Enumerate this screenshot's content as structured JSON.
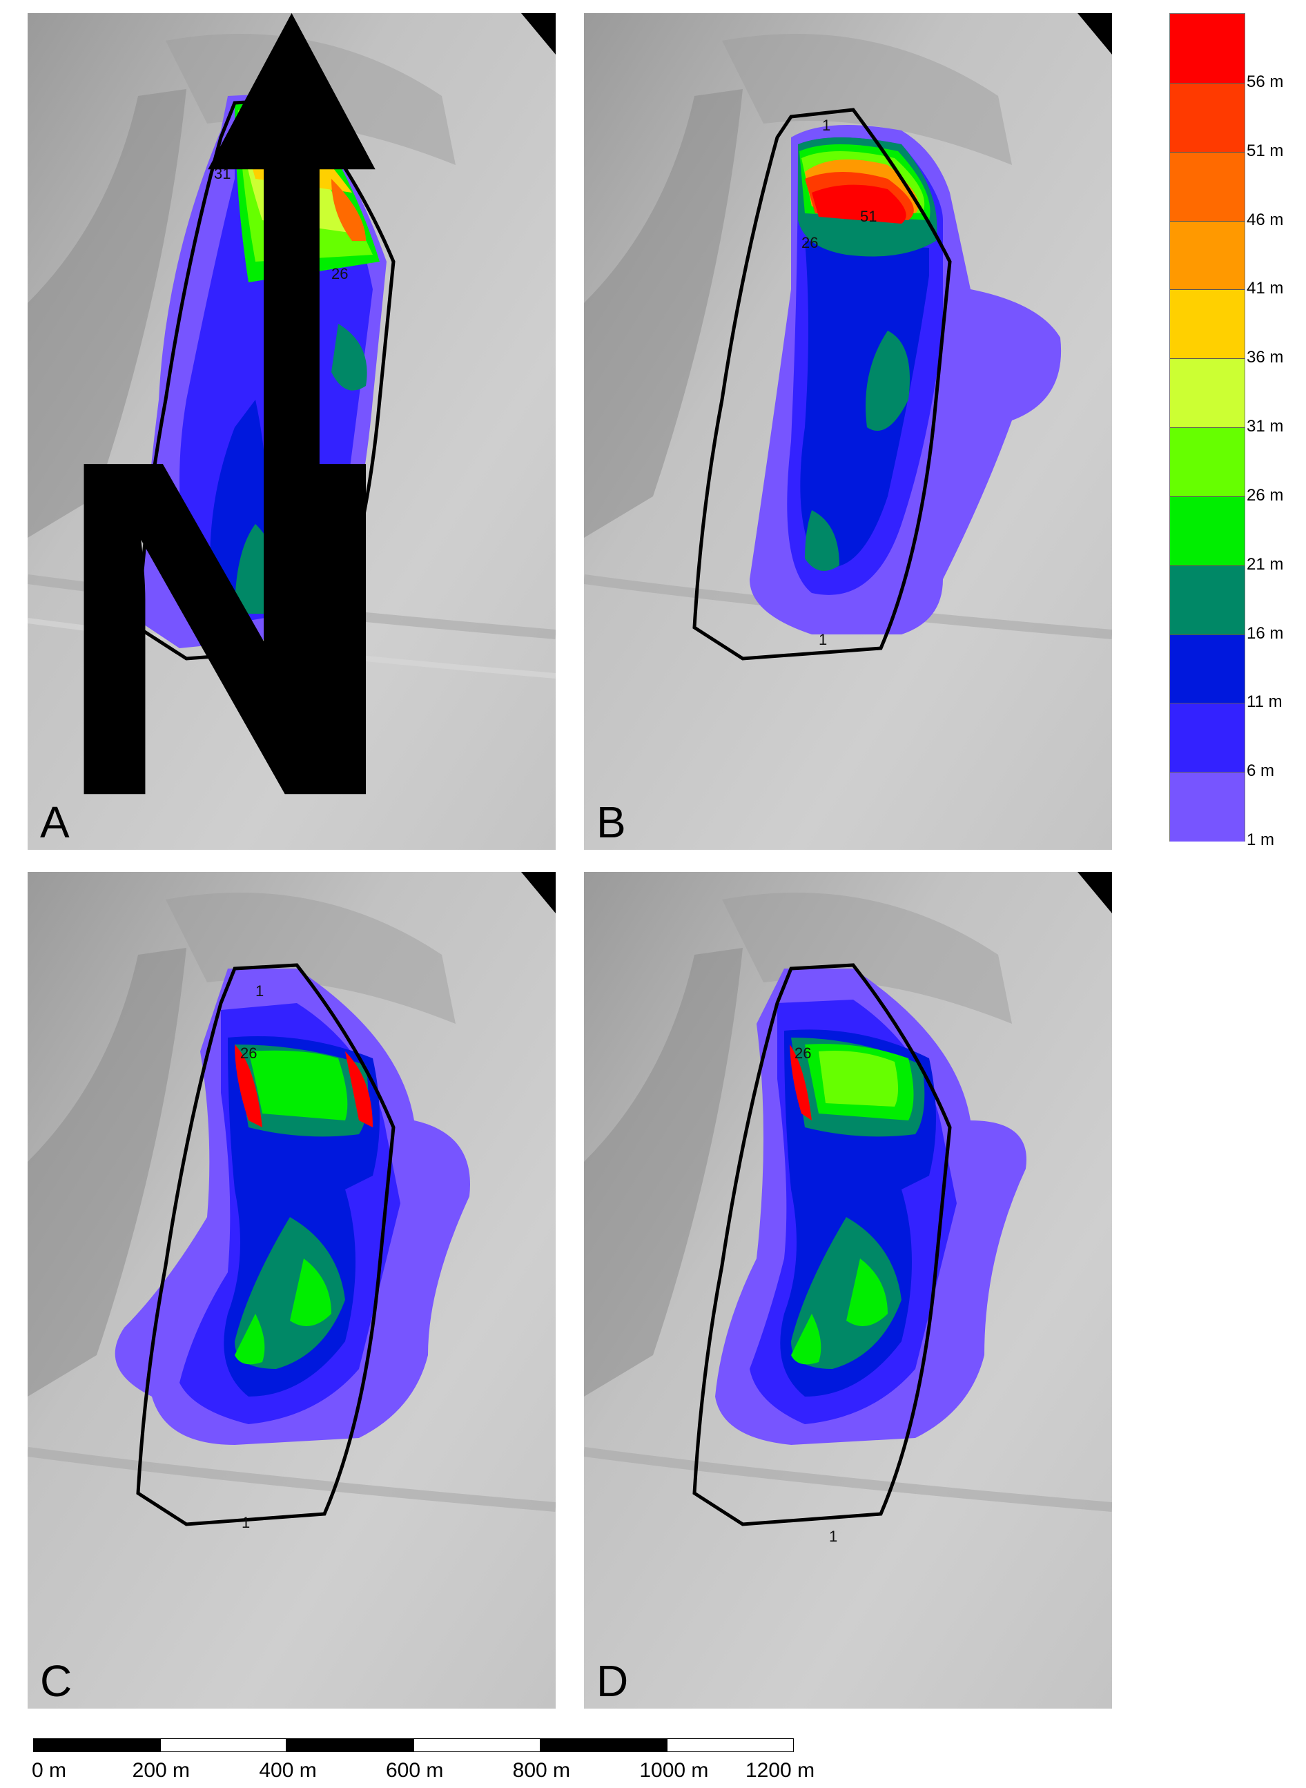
{
  "panels": [
    {
      "id": "A",
      "label": "A"
    },
    {
      "id": "B",
      "label": "B"
    },
    {
      "id": "C",
      "label": "C"
    },
    {
      "id": "D",
      "label": "D"
    }
  ],
  "north_arrow": {
    "label": "N",
    "icon": "north-arrow-icon"
  },
  "legend": {
    "colors": [
      "#ff0000",
      "#ff3a00",
      "#ff6a00",
      "#ff9900",
      "#ffd000",
      "#ccff33",
      "#66ff00",
      "#00ee00",
      "#008866",
      "#0018dd",
      "#3322ff",
      "#7755ff"
    ],
    "labels": [
      "56 m",
      "51 m",
      "46 m",
      "41 m",
      "36 m",
      "31 m",
      "26 m",
      "21 m",
      "16 m",
      "11 m",
      "6 m",
      "1 m"
    ]
  },
  "contour_labels": {
    "a_31": "31",
    "a_26": "26",
    "b_51": "51",
    "b_26": "26",
    "b_1": "1",
    "b_1b": "1",
    "c_1": "1",
    "c_26": "26",
    "c_1b": "1",
    "d_26": "26",
    "d_1": "1"
  },
  "scale_bar": {
    "labels": [
      "0 m",
      "200 m",
      "400 m",
      "600 m",
      "800 m",
      "1000 m",
      "1200 m"
    ]
  }
}
